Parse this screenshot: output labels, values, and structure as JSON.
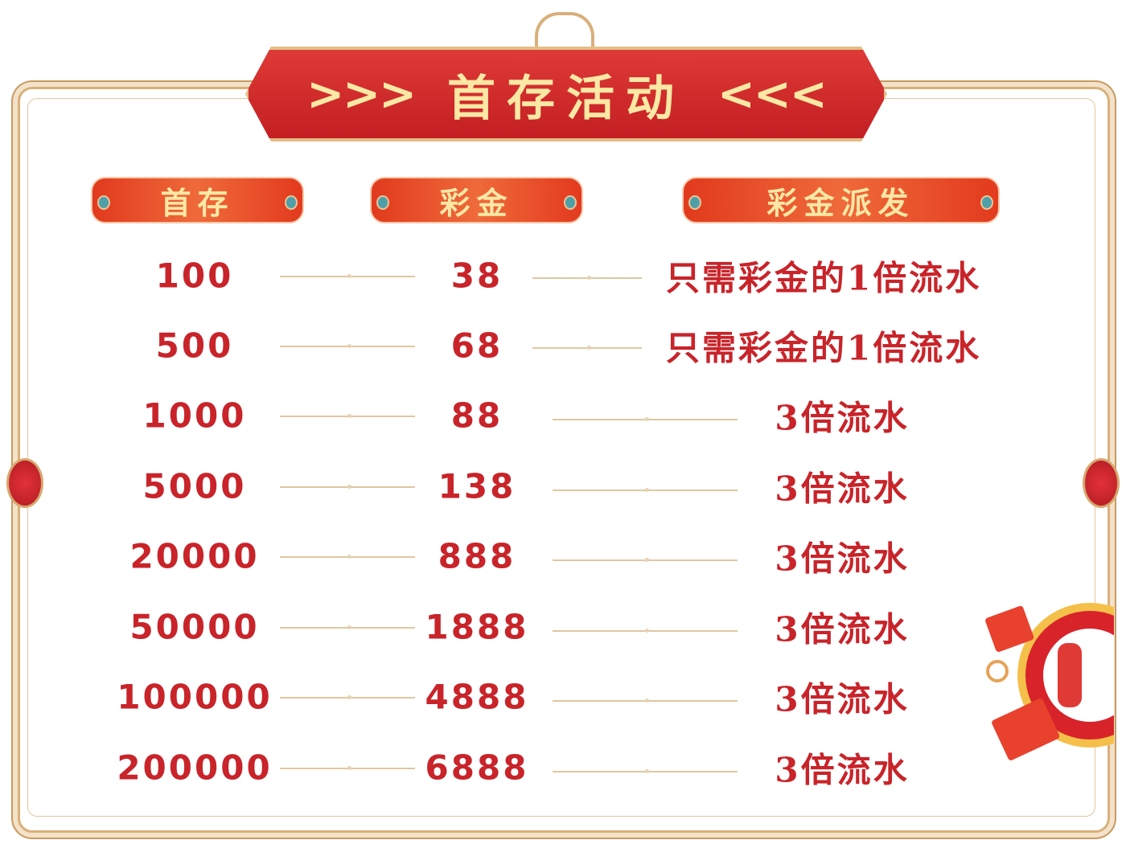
{
  "title": "首存活动",
  "title_left_deco": ">>>",
  "title_right_deco": "<<<",
  "headers": [
    "首存",
    "彩金",
    "彩金派发"
  ],
  "rows": [
    {
      "deposit": "100",
      "bonus": "38",
      "payout": "只需彩金的1倍流水"
    },
    {
      "deposit": "500",
      "bonus": "68",
      "payout": "只需彩金的1倍流水"
    },
    {
      "deposit": "1000",
      "bonus": "88",
      "payout": "3倍流水"
    },
    {
      "deposit": "5000",
      "bonus": "138",
      "payout": "3倍流水"
    },
    {
      "deposit": "20000",
      "bonus": "888",
      "payout": "3倍流水"
    },
    {
      "deposit": "50000",
      "bonus": "1888",
      "payout": "3倍流水"
    },
    {
      "deposit": "100000",
      "bonus": "4888",
      "payout": "3倍流水"
    },
    {
      "deposit": "200000",
      "bonus": "6888",
      "payout": "3倍流水"
    }
  ],
  "colors": {
    "text_red": "#c8242a",
    "banner_red": "#c41f22",
    "gold": "#d9b07a",
    "header_text": "#fbe8a4"
  }
}
